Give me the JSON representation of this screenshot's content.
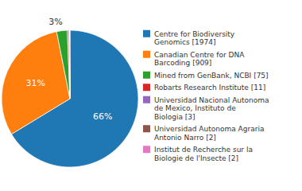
{
  "chart_data": {
    "type": "pie",
    "categories": [
      "Centre for Biodiversity\nGenomics [1974]",
      "Canadian Centre for DNA\nBarcoding [909]",
      "Mined from GenBank, NCBI [75]",
      "Robarts Research Institute [11]",
      "Universidad Nacional Autonoma\nde Mexico, Instituto de\nBiologia [3]",
      "Universidad Autonoma Agraria\nAntonio Narro [2]",
      "Institut de Recherche sur la\nBiologie de l'Insecte [2]"
    ],
    "values": [
      1974,
      909,
      75,
      11,
      3,
      2,
      2
    ],
    "annotations": [
      "66%",
      "31%",
      "3%"
    ],
    "legend": "right"
  }
}
